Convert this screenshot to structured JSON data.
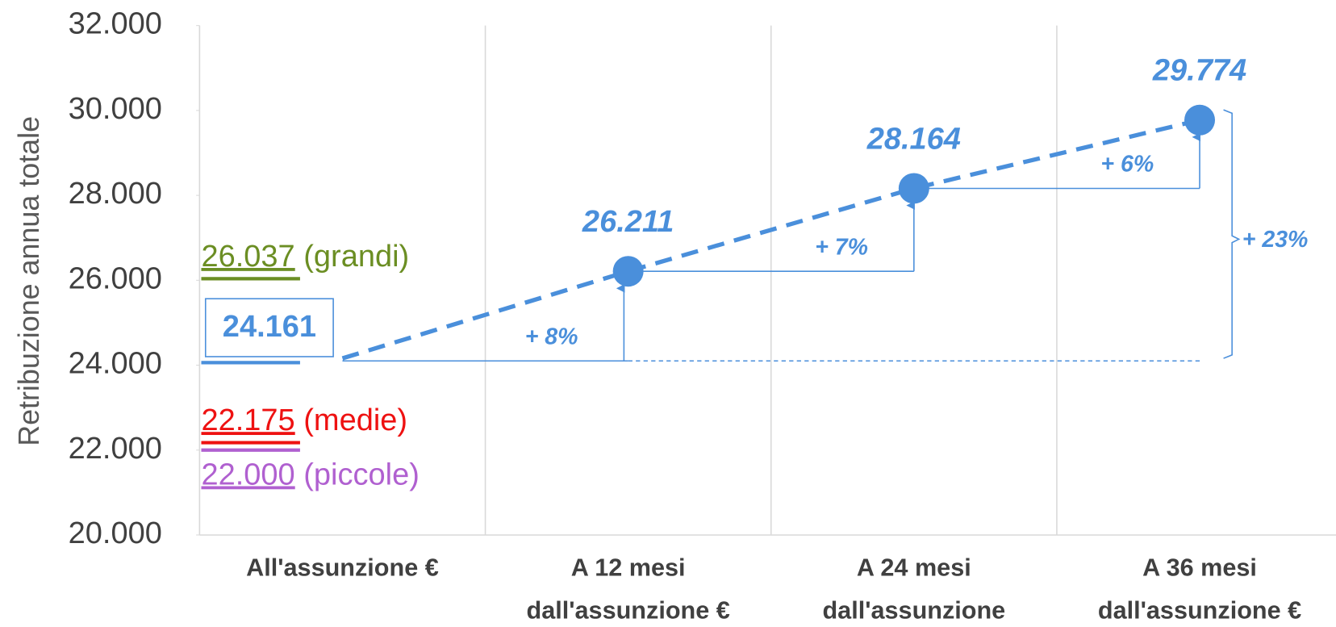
{
  "chart_data": {
    "type": "line",
    "y_label": "Retribuzione annua totale",
    "categories": [
      "All'assunzione €",
      "A 12 mesi dall'assunzione €",
      "A 24 mesi dall'assunzione",
      "A 36 mesi dall'assunzione €"
    ],
    "series": [
      {
        "color": "#4a8fdb",
        "values": [
          24161,
          26211,
          28164,
          29774
        ],
        "value_labels": [
          "24.161",
          "26.211",
          "28.164",
          "29.774"
        ],
        "markers": [
          false,
          true,
          true,
          true
        ]
      }
    ],
    "references": [
      {
        "name": "(grandi)",
        "value": 26037,
        "value_label": "26.037",
        "color": "#6b8e23"
      },
      {
        "name": "(medie)",
        "value": 22175,
        "value_label": "22.175",
        "color": "#ee1111"
      },
      {
        "name": "(piccole)",
        "value": 22000,
        "value_label": "22.000",
        "color": "#b060d0"
      }
    ],
    "growth_labels": [
      "+ 8%",
      "+ 7%",
      "+ 6%"
    ],
    "total_growth_label": "+ 23%",
    "ylim": [
      20000,
      32000
    ],
    "yticks": [
      {
        "value": 20000,
        "label": "20.000"
      },
      {
        "value": 22000,
        "label": "22.000"
      },
      {
        "value": 24000,
        "label": "24.000"
      },
      {
        "value": 26000,
        "label": "26.000"
      },
      {
        "value": 28000,
        "label": "28.000"
      },
      {
        "value": 30000,
        "label": "30.000"
      },
      {
        "value": 32000,
        "label": "32.000"
      }
    ],
    "grid": true
  }
}
